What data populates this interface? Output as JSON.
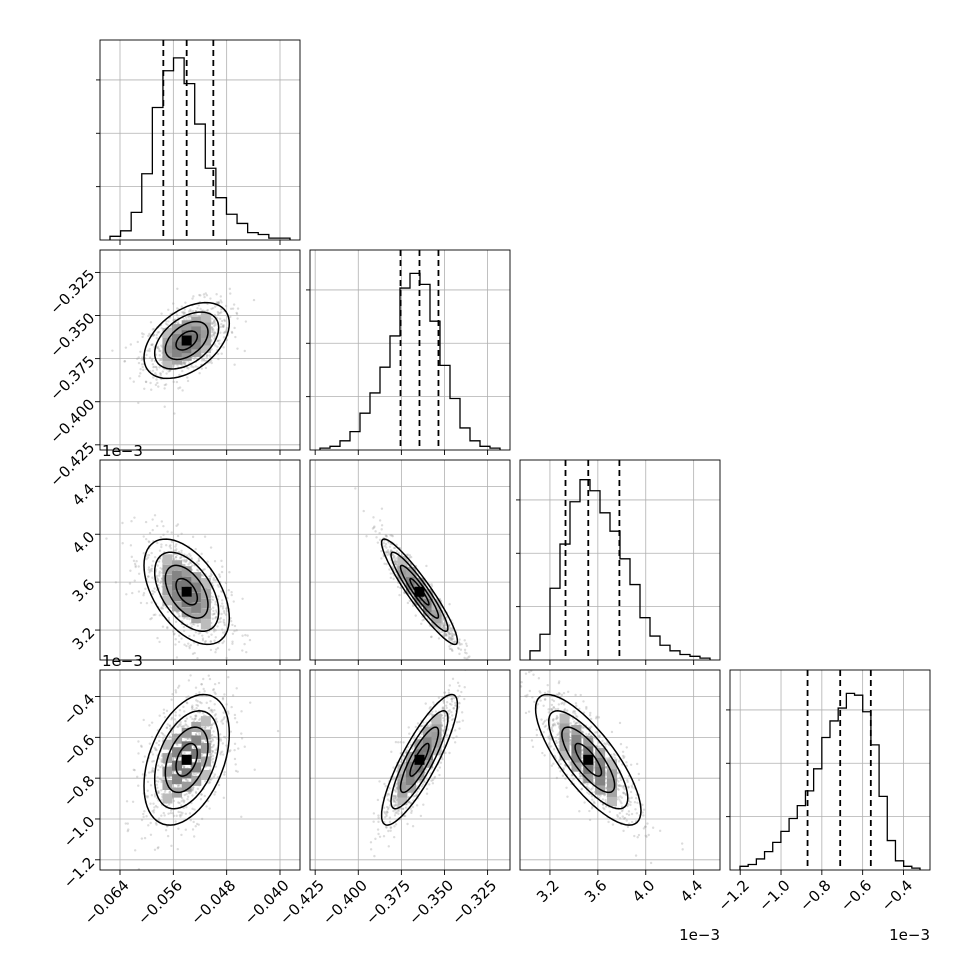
{
  "chart_data": {
    "type": "corner",
    "grid": true,
    "parameters": [
      {
        "range": [
          -0.067,
          -0.037
        ],
        "ticks": [
          -0.064,
          -0.056,
          -0.048,
          -0.04
        ],
        "tick_labels": [
          "−0.064",
          "−0.056",
          "−0.048",
          "−0.040"
        ],
        "offset_label": "",
        "quantiles": [
          -0.0575,
          -0.054,
          -0.05
        ],
        "mean": -0.054,
        "sd": 0.0032,
        "hist": [
          0.02,
          0.05,
          0.15,
          0.36,
          0.72,
          0.92,
          0.99,
          0.85,
          0.63,
          0.39,
          0.23,
          0.14,
          0.09,
          0.04,
          0.03,
          0.01,
          0.01
        ]
      },
      {
        "range": [
          -0.428,
          -0.312
        ],
        "ticks": [
          -0.425,
          -0.4,
          -0.375,
          -0.35,
          -0.325
        ],
        "tick_labels": [
          "−0.425",
          "−0.400",
          "−0.375",
          "−0.350",
          "−0.325"
        ],
        "offset_label": "",
        "quantiles": [
          -0.3755,
          -0.3645,
          -0.3535
        ],
        "mean": -0.3645,
        "sd": 0.011,
        "hist": [
          0.01,
          0.02,
          0.05,
          0.1,
          0.2,
          0.31,
          0.45,
          0.62,
          0.88,
          0.96,
          0.9,
          0.7,
          0.46,
          0.28,
          0.12,
          0.05,
          0.02,
          0.01
        ]
      },
      {
        "range": [
          2.95,
          4.62
        ],
        "ticks": [
          3.2,
          3.6,
          4.0,
          4.4
        ],
        "tick_labels": [
          "3.2",
          "3.6",
          "4.0",
          "4.4"
        ],
        "offset_label": "1e−3",
        "quantiles": [
          3.33,
          3.52,
          3.78
        ],
        "mean": 3.52,
        "sd": 0.22,
        "hist": [
          0.05,
          0.14,
          0.39,
          0.63,
          0.86,
          0.98,
          0.92,
          0.8,
          0.7,
          0.55,
          0.41,
          0.23,
          0.13,
          0.08,
          0.05,
          0.03,
          0.02,
          0.01
        ]
      },
      {
        "range": [
          -1.25,
          -0.27
        ],
        "ticks": [
          -1.2,
          -1.0,
          -0.8,
          -0.6,
          -0.4
        ],
        "tick_labels": [
          "−1.2",
          "−1.0",
          "−0.8",
          "−0.6",
          "−0.4"
        ],
        "offset_label": "1e−3",
        "quantiles": [
          -0.87,
          -0.71,
          -0.56
        ],
        "mean": -0.71,
        "sd": 0.16,
        "hist": [
          0.02,
          0.03,
          0.06,
          0.1,
          0.15,
          0.21,
          0.28,
          0.35,
          0.43,
          0.55,
          0.72,
          0.81,
          0.88,
          0.96,
          0.95,
          0.86,
          0.68,
          0.4,
          0.16,
          0.05,
          0.02,
          0.01
        ]
      }
    ],
    "correlations": {
      "1-0": 0.45,
      "2-0": -0.5,
      "2-1": -0.93,
      "3-0": 0.4,
      "3-1": 0.85,
      "3-2": -0.78
    }
  }
}
